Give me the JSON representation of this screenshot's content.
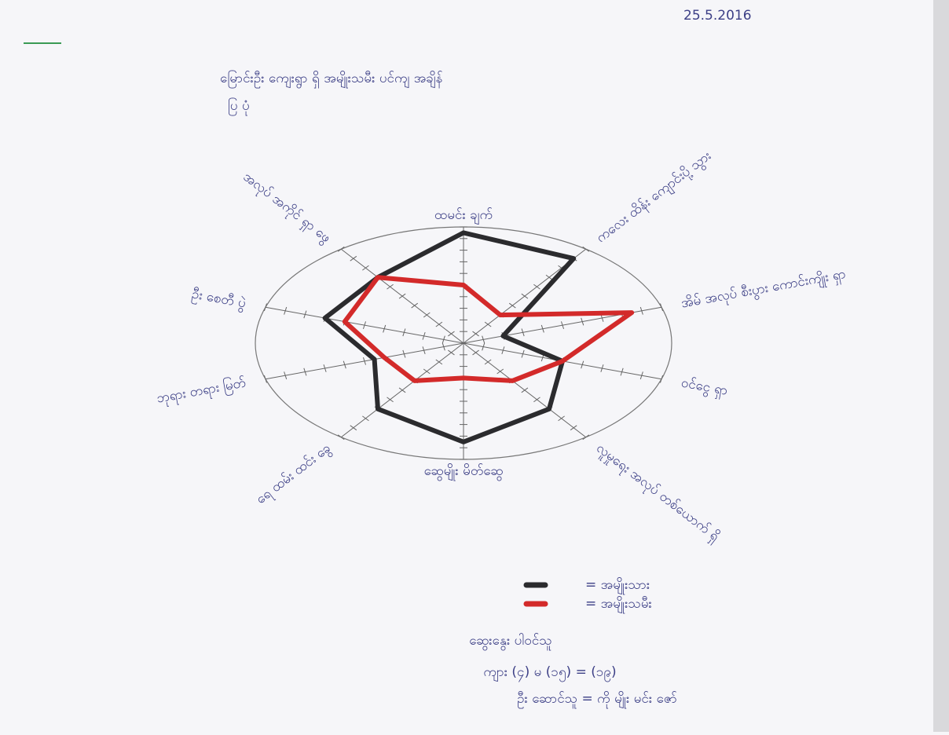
{
  "chart_data": {
    "type": "radar",
    "date": "25.5.2016",
    "title": "မြောင်းဦး ကျေးရွာ ရှိ အမျိုးသမီး ပင်ကျ အချိန်",
    "subtitle": "ပြ ပုံ",
    "categories": [
      "ထမင်း ချက်",
      "ကလေး ထိန်း ကျောင်းပို့ သွား",
      "အိမ် အလုပ် စီးပွား ကောင်းကျိုး ရှာ",
      "ဝင်ငွေ ရှာ",
      "လူမှုရေး အလုပ် တစ်ယောက် ရှိ ",
      "ဆွေမျိုး မိတ်ဆွေ",
      "ရေ ထမ်း ထင်း ခွေ",
      "ဘုရား တရား မြတ်",
      "ဦး စေတီ ပွဲ ",
      "အလုပ် အကိုင် ရှာ ဖွေ"
    ],
    "rlim": [
      0,
      10
    ],
    "rticks": [
      1,
      2,
      3,
      4,
      5,
      6,
      7,
      8,
      9,
      10
    ],
    "series": [
      {
        "name": "= အမျိုးသား",
        "color": "#2b2b2e",
        "values": [
          9.5,
          9,
          2,
          5,
          7,
          8.5,
          7,
          4.5,
          7,
          7
        ]
      },
      {
        "name": "= အမျိုးသမီး",
        "color": "#d32a2a",
        "values": [
          5,
          3,
          8.5,
          5,
          4,
          3,
          4,
          4,
          6,
          7
        ]
      }
    ],
    "notes": [
      "ဆွေးနွေး ပါဝင်သူ",
      "ကျား (၄) မ (၁၅) = (၁၉)",
      "ဦး ဆောင်သူ = ကို မျိုး မင်း ဇော်"
    ]
  }
}
